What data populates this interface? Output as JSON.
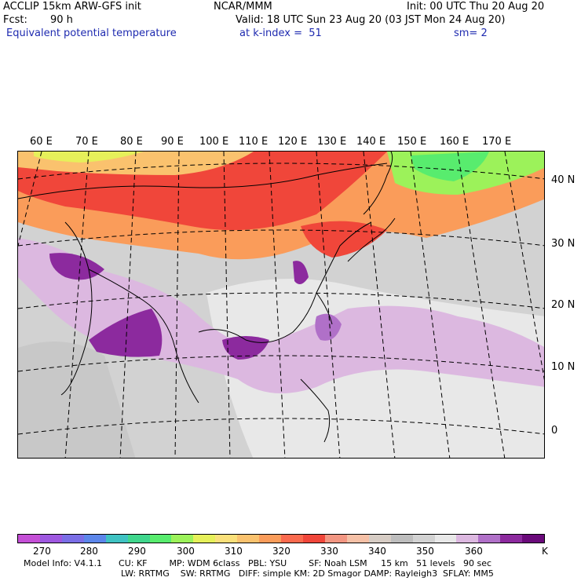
{
  "header": {
    "model": "ACCLIP 15km ARW-GFS init",
    "org": "NCAR/MMM",
    "init": "Init: 00 UTC Thu 20 Aug 20",
    "fcst_label": "Fcst:",
    "fcst_value": "90 h",
    "valid": "Valid: 18 UTC Sun 23 Aug 20 (03 JST Mon 24 Aug 20)",
    "variable": "Equivalent potential temperature",
    "level": "at k-index =  51",
    "smoothing": "sm= 2"
  },
  "map": {
    "lon_labels": [
      "60 E",
      "70 E",
      "80 E",
      "90 E",
      "100 E",
      "110 E",
      "120 E",
      "130 E",
      "140 E",
      "150 E",
      "160 E",
      "170 E"
    ],
    "lat_labels": [
      "40 N",
      "30 N",
      "20 N",
      "10 N",
      "0"
    ]
  },
  "colorbar": {
    "colors": [
      "#c44fd6",
      "#9e58e0",
      "#7a6ee6",
      "#5c86ea",
      "#3fc2c2",
      "#3fd68c",
      "#58ec6e",
      "#9cf25a",
      "#e6f05a",
      "#fae07a",
      "#fac26e",
      "#fa9c5a",
      "#fa6a4e",
      "#f0463a",
      "#f29682",
      "#f5c0a6",
      "#d6ccc4",
      "#bdbdbd",
      "#d2d2d2",
      "#e8e8e8",
      "#dcb8e0",
      "#b070c8",
      "#8c2a9e",
      "#6a0a7a"
    ],
    "labels": [
      "270",
      "280",
      "290",
      "300",
      "310",
      "320",
      "330",
      "340",
      "350",
      "360"
    ],
    "unit": "K"
  },
  "footer": {
    "line1": "Model Info: V4.1.1      CU: KF        MP: WDM 6class   PBL: YSU        SF: Noah LSM     15 km   51 levels   90 sec",
    "line2": "LW: RRTMG    SW: RRTMG   DIFF: simple KM: 2D Smagor DAMP: Rayleigh3  SFLAY: MM5"
  }
}
